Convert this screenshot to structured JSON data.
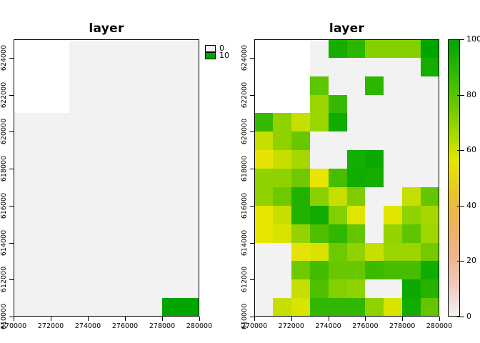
{
  "chart_data": [
    {
      "type": "heatmap",
      "title": "layer",
      "x_domain": [
        270000,
        280000
      ],
      "y_domain": [
        610000,
        625000
      ],
      "x_ticks": [
        270000,
        272000,
        274000,
        276000,
        278000,
        280000
      ],
      "y_ticks": [
        610000,
        612000,
        614000,
        616000,
        618000,
        620000,
        622000,
        624000
      ],
      "nrows": 15,
      "ncols": 10,
      "palette": [
        [
          0,
          "#F2F2F2"
        ],
        [
          10,
          "#00A600"
        ]
      ],
      "legend": {
        "entries": [
          {
            "label": "0",
            "color": "#F2F2F2"
          },
          {
            "label": "10",
            "color": "#00A600"
          }
        ]
      },
      "values": [
        [
          null,
          null,
          null,
          0,
          0,
          0,
          0,
          0,
          0,
          0
        ],
        [
          null,
          null,
          null,
          0,
          0,
          0,
          0,
          0,
          0,
          0
        ],
        [
          null,
          null,
          null,
          0,
          0,
          0,
          0,
          0,
          0,
          0
        ],
        [
          null,
          null,
          null,
          0,
          0,
          0,
          0,
          0,
          0,
          0
        ],
        [
          0,
          0,
          0,
          0,
          0,
          0,
          0,
          0,
          0,
          0
        ],
        [
          0,
          0,
          0,
          0,
          0,
          0,
          0,
          0,
          0,
          0
        ],
        [
          0,
          0,
          0,
          0,
          0,
          0,
          0,
          0,
          0,
          0
        ],
        [
          0,
          0,
          0,
          0,
          0,
          0,
          0,
          0,
          0,
          0
        ],
        [
          0,
          0,
          0,
          0,
          0,
          0,
          0,
          0,
          0,
          0
        ],
        [
          0,
          0,
          0,
          0,
          0,
          0,
          0,
          0,
          0,
          0
        ],
        [
          0,
          0,
          0,
          0,
          0,
          0,
          0,
          0,
          0,
          0
        ],
        [
          0,
          0,
          0,
          0,
          0,
          0,
          0,
          0,
          0,
          0
        ],
        [
          0,
          0,
          0,
          0,
          0,
          0,
          0,
          0,
          0,
          0
        ],
        [
          0,
          0,
          0,
          0,
          0,
          0,
          0,
          0,
          0,
          0
        ],
        [
          0,
          0,
          0,
          0,
          0,
          0,
          0,
          0,
          10,
          10
        ]
      ]
    },
    {
      "type": "heatmap",
      "title": "layer",
      "x_domain": [
        270000,
        280000
      ],
      "y_domain": [
        610000,
        625000
      ],
      "x_ticks": [
        270000,
        272000,
        274000,
        276000,
        278000,
        280000
      ],
      "y_ticks": [
        610000,
        612000,
        614000,
        616000,
        618000,
        620000,
        622000,
        624000
      ],
      "nrows": 15,
      "ncols": 10,
      "palette": [
        [
          0,
          "#F2F2F2"
        ],
        [
          11,
          "#F0C9C0"
        ],
        [
          22,
          "#EDB48E"
        ],
        [
          33,
          "#EBB25E"
        ],
        [
          44,
          "#E8C32E"
        ],
        [
          56,
          "#E6E600"
        ],
        [
          67,
          "#A0D600"
        ],
        [
          78,
          "#63C600"
        ],
        [
          89,
          "#2DB600"
        ],
        [
          100,
          "#00A600"
        ]
      ],
      "colorbar": {
        "min": 0,
        "max": 100,
        "ticks": [
          0,
          20,
          40,
          60,
          80,
          100
        ]
      },
      "values": [
        [
          null,
          null,
          null,
          0,
          95,
          89,
          72,
          72,
          72,
          100
        ],
        [
          null,
          null,
          null,
          0,
          0,
          0,
          0,
          0,
          0,
          95
        ],
        [
          null,
          null,
          null,
          79,
          0,
          0,
          89,
          0,
          0,
          0
        ],
        [
          null,
          null,
          null,
          68,
          87,
          0,
          0,
          0,
          0,
          0
        ],
        [
          87,
          70,
          61,
          68,
          96,
          0,
          0,
          0,
          0,
          0
        ],
        [
          61,
          70,
          77,
          0,
          0,
          0,
          0,
          0,
          0,
          0
        ],
        [
          55,
          61,
          66,
          0,
          0,
          95,
          97,
          0,
          0,
          0
        ],
        [
          70,
          70,
          76,
          56,
          84,
          96,
          95,
          0,
          0,
          0
        ],
        [
          70,
          76,
          92,
          71,
          61,
          73,
          0,
          0,
          61,
          78
        ],
        [
          56,
          61,
          92,
          96,
          72,
          57,
          0,
          57,
          70,
          66
        ],
        [
          56,
          58,
          69,
          82,
          88,
          78,
          0,
          69,
          79,
          67
        ],
        [
          0,
          0,
          55,
          58,
          76,
          70,
          61,
          68,
          68,
          75
        ],
        [
          0,
          0,
          76,
          85,
          77,
          77,
          86,
          84,
          84,
          96
        ],
        [
          0,
          0,
          61,
          82,
          72,
          70,
          0,
          0,
          97,
          91
        ],
        [
          0,
          61,
          58,
          88,
          88,
          88,
          70,
          58,
          96,
          78
        ]
      ]
    }
  ]
}
